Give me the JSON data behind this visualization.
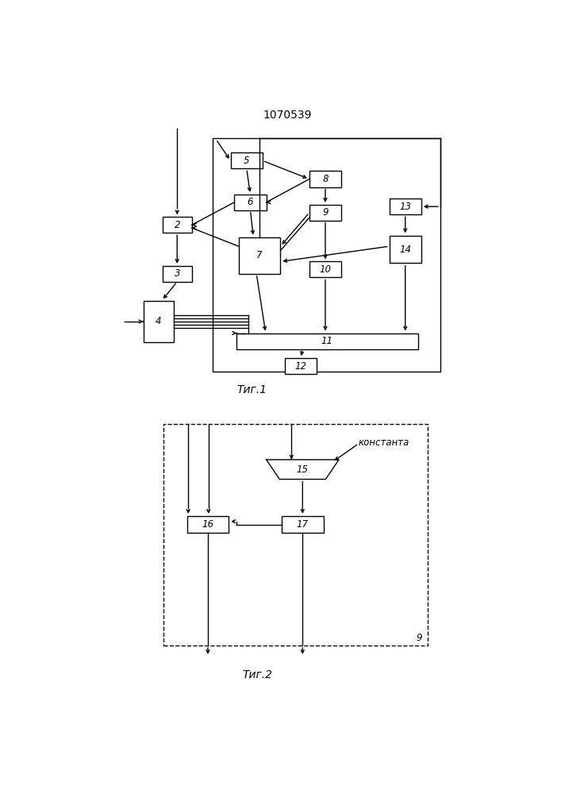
{
  "title": "1070539",
  "fig1_label": "Τиг.1",
  "fig2_label": "Τиг.2",
  "bg_color": "#ffffff",
  "line_color": "#000000",
  "fig2_dash_label": "константа"
}
